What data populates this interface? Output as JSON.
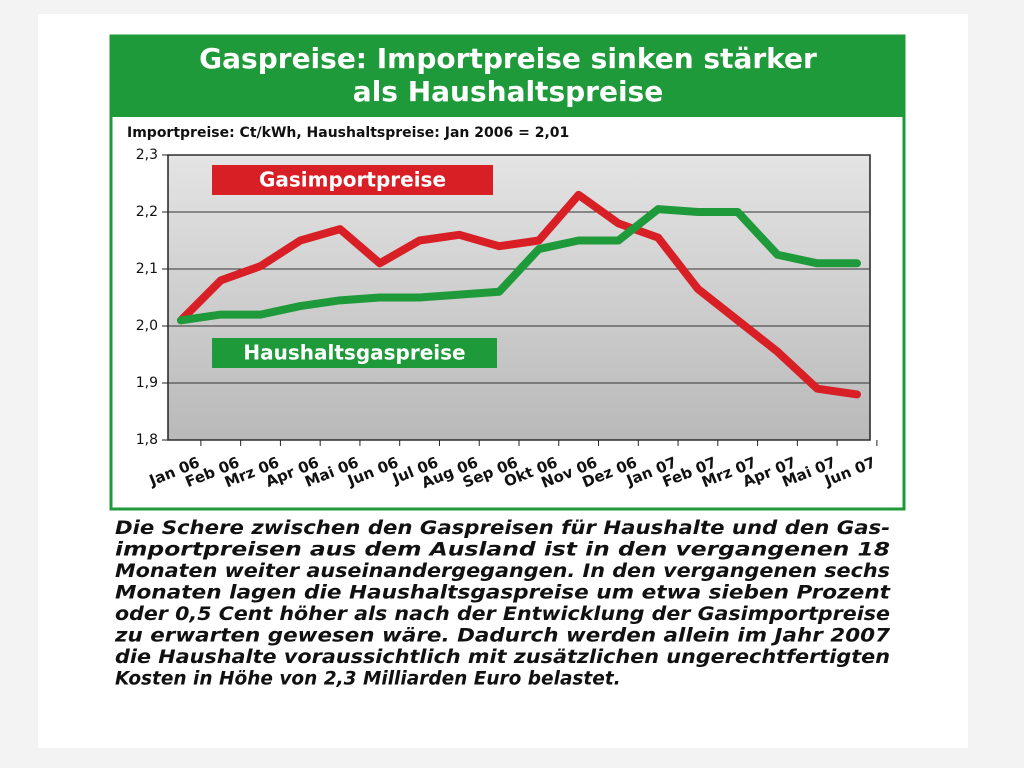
{
  "chart_data": {
    "type": "line",
    "title": [
      "Gaspreise: Importpreise sinken stärker",
      "als Haushaltspreise"
    ],
    "subtitle": "Importpreise: Ct/kWh, Haushaltspreise: Jan 2006 = 2,01",
    "categories": [
      "Jan 06",
      "Feb 06",
      "Mrz 06",
      "Apr 06",
      "Mai 06",
      "Jun 06",
      "Jul 06",
      "Aug 06",
      "Sep 06",
      "Okt 06",
      "Nov 06",
      "Dez 06",
      "Jan 07",
      "Feb 07",
      "Mrz 07",
      "Apr 07",
      "Mai 07",
      "Jun 07"
    ],
    "series": [
      {
        "name": "Gasimportpreise",
        "color": "#d81f26",
        "values": [
          2.01,
          2.08,
          2.105,
          2.15,
          2.17,
          2.11,
          2.15,
          2.16,
          2.14,
          2.15,
          2.23,
          2.18,
          2.155,
          2.065,
          2.01,
          1.955,
          1.89,
          1.88
        ]
      },
      {
        "name": "Haushaltsgaspreise",
        "color": "#1f9a3a",
        "values": [
          2.01,
          2.02,
          2.02,
          2.035,
          2.045,
          2.05,
          2.05,
          2.055,
          2.06,
          2.135,
          2.15,
          2.15,
          2.205,
          2.2,
          2.2,
          2.125,
          2.11,
          2.11
        ]
      }
    ],
    "ylim": [
      1.8,
      2.3
    ],
    "yticks": [
      {
        "value": 1.8,
        "label": "1,8"
      },
      {
        "value": 1.9,
        "label": "1,9"
      },
      {
        "value": 2.0,
        "label": "2,0"
      },
      {
        "value": 2.1,
        "label": "2,1"
      },
      {
        "value": 2.2,
        "label": "2,2"
      },
      {
        "value": 2.3,
        "label": "2,3"
      }
    ],
    "grid": true,
    "caption": [
      "Die Schere zwischen den Gaspreisen für Haushalte und den Gas-",
      "importpreisen aus dem Ausland ist in den vergangenen 18",
      "Monaten weiter auseinandergegangen. In den vergangenen sechs",
      "Monaten lagen die Haushaltsgaspreise um etwa sieben Prozent",
      "oder 0,5 Cent höher als nach der Entwicklung der Gasimportpreise",
      "zu erwarten gewesen wäre. Dadurch werden allein im Jahr 2007",
      "die Haushalte voraussichtlich mit zusätzlichen ungerechtfertigten",
      "Kosten in Höhe von 2,3 Milliarden Euro belastet."
    ]
  }
}
